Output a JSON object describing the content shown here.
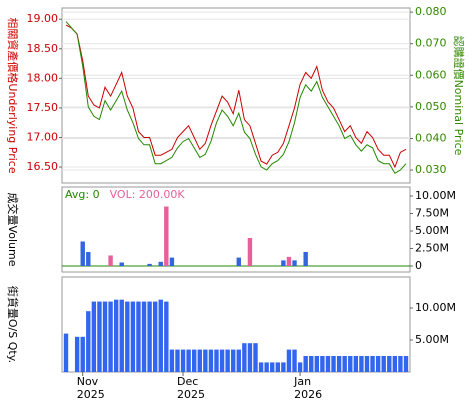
{
  "chart_data": [
    {
      "type": "line",
      "ylabel": "相關資產價格Underlying Price",
      "y2label": "認購證價Nominal Price",
      "ylim": [
        16.23,
        19.19
      ],
      "yticks": [
        {
          "value": 16.5,
          "label": "16.50"
        },
        {
          "value": 17,
          "label": "17.00"
        },
        {
          "value": 17.5,
          "label": "17.50"
        },
        {
          "value": 18,
          "label": "18.00"
        },
        {
          "value": 18.5,
          "label": "18.50"
        },
        {
          "value": 19,
          "label": "19.00"
        }
      ],
      "y2lim": [
        0.0259,
        0.0813
      ],
      "y2ticks": [
        {
          "value": 0.03,
          "label": "0.030"
        },
        {
          "value": 0.04,
          "label": "0.040"
        },
        {
          "value": 0.05,
          "label": "0.050"
        },
        {
          "value": 0.06,
          "label": "0.060"
        },
        {
          "value": 0.07,
          "label": "0.070"
        },
        {
          "value": 0.08,
          "label": "0.080"
        }
      ],
      "ycolor": "#cc0000",
      "y2color": "#338800",
      "grid": true,
      "series": [
        {
          "color": "#cc0000",
          "values": [
            18.9,
            18.85,
            18.75,
            18.3,
            17.7,
            17.55,
            17.5,
            17.85,
            17.7,
            17.9,
            18.1,
            17.7,
            17.5,
            17.1,
            17.0,
            17.0,
            16.7,
            16.7,
            16.75,
            16.8,
            17.0,
            17.1,
            17.2,
            17.0,
            16.8,
            16.9,
            17.2,
            17.45,
            17.7,
            17.6,
            17.4,
            17.8,
            17.3,
            17.2,
            16.9,
            16.6,
            16.55,
            16.7,
            16.75,
            16.9,
            17.2,
            17.5,
            17.9,
            18.1,
            18.0,
            18.2,
            17.8,
            17.6,
            17.5,
            17.3,
            17.1,
            17.2,
            17.0,
            16.9,
            17.1,
            17.0,
            16.8,
            16.7,
            16.7,
            16.5,
            16.75,
            16.8
          ]
        },
        {
          "color": "#228800",
          "axis": "y2",
          "values": [
            0.077,
            0.075,
            0.073,
            0.063,
            0.05,
            0.047,
            0.046,
            0.052,
            0.049,
            0.052,
            0.055,
            0.049,
            0.045,
            0.04,
            0.038,
            0.038,
            0.032,
            0.032,
            0.033,
            0.034,
            0.037,
            0.039,
            0.04,
            0.037,
            0.034,
            0.035,
            0.039,
            0.045,
            0.049,
            0.047,
            0.044,
            0.048,
            0.042,
            0.04,
            0.035,
            0.031,
            0.03,
            0.032,
            0.033,
            0.035,
            0.039,
            0.045,
            0.053,
            0.057,
            0.055,
            0.058,
            0.053,
            0.05,
            0.047,
            0.044,
            0.04,
            0.041,
            0.038,
            0.036,
            0.038,
            0.037,
            0.033,
            0.032,
            0.032,
            0.029,
            0.03,
            0.032
          ]
        }
      ]
    },
    {
      "type": "bar",
      "ylabel": "成交量Volume",
      "legend": [
        {
          "text": "Avg: 0",
          "color": "#228800"
        },
        {
          "text": "VOL: 200.00K",
          "color": "#e8609a"
        }
      ],
      "ylim": [
        -860000,
        11290000
      ],
      "yticks": [
        0,
        {
          "value": 2500000,
          "label": "2.50M"
        },
        {
          "value": 5000000,
          "label": "5.00M"
        },
        {
          "value": 7500000,
          "label": "7.50M"
        },
        {
          "value": 10000000,
          "label": "10.00M"
        }
      ],
      "values": [
        0,
        0,
        0,
        3500000,
        2000000,
        0,
        0,
        0,
        1500000,
        0,
        500000,
        0,
        0,
        0,
        0,
        300000,
        0,
        600000,
        8500000,
        1200000,
        0,
        0,
        0,
        0,
        0,
        0,
        0,
        0,
        0,
        0,
        0,
        1200000,
        0,
        4000000,
        0,
        0,
        0,
        0,
        0,
        800000,
        1300000,
        800000,
        0,
        2000000,
        0,
        0,
        0,
        0,
        0,
        0,
        0,
        0,
        0,
        0,
        0,
        0,
        0,
        0,
        0,
        0,
        0,
        0
      ],
      "colors": [
        "#3366dd",
        "#3366dd",
        "#3366dd",
        "#3366dd",
        "#3366dd",
        "#3366dd",
        "#3366dd",
        "#3366dd",
        "#e8609a",
        "#3366dd",
        "#3366dd",
        "#3366dd",
        "#3366dd",
        "#3366dd",
        "#3366dd",
        "#3366dd",
        "#3366dd",
        "#3366dd",
        "#e8609a",
        "#3366dd",
        "#3366dd",
        "#3366dd",
        "#3366dd",
        "#3366dd",
        "#3366dd",
        "#3366dd",
        "#3366dd",
        "#3366dd",
        "#3366dd",
        "#3366dd",
        "#3366dd",
        "#3366dd",
        "#3366dd",
        "#e8609a",
        "#3366dd",
        "#3366dd",
        "#3366dd",
        "#3366dd",
        "#3366dd",
        "#3366dd",
        "#e8609a",
        "#3366dd",
        "#3366dd",
        "#3366dd",
        "#3366dd",
        "#3366dd",
        "#3366dd",
        "#3366dd",
        "#3366dd",
        "#3366dd",
        "#3366dd",
        "#3366dd",
        "#3366dd",
        "#3366dd",
        "#3366dd",
        "#3366dd",
        "#3366dd",
        "#3366dd",
        "#3366dd",
        "#3366dd",
        "#3366dd",
        "#3366dd"
      ]
    },
    {
      "type": "bar",
      "ylabel": "街貨量O/S Qty.",
      "color": "#3366ee",
      "ylim": [
        0,
        14840000
      ],
      "yticks": [
        {
          "value": 5000000,
          "label": "5.00M"
        },
        {
          "value": 10000000,
          "label": "10.00M"
        }
      ],
      "values": [
        6000000,
        null,
        5500000,
        5500000,
        9500000,
        11000000,
        11000000,
        11000000,
        11000000,
        11300000,
        11300000,
        11000000,
        11000000,
        11000000,
        11000000,
        11000000,
        11000000,
        11300000,
        11000000,
        3500000,
        3500000,
        3500000,
        3500000,
        3500000,
        3500000,
        3500000,
        3500000,
        3500000,
        3500000,
        3500000,
        3500000,
        3500000,
        4500000,
        4500000,
        4500000,
        1500000,
        1500000,
        1500000,
        1500000,
        1500000,
        3500000,
        3500000,
        1500000,
        2500000,
        2500000,
        2500000,
        2500000,
        2500000,
        2500000,
        2500000,
        2500000,
        2500000,
        2500000,
        2500000,
        2500000,
        2500000,
        2500000,
        2500000,
        2500000,
        2500000,
        2500000,
        2500000
      ],
      "categories": [
        null,
        null,
        null,
        "Nov\n2025",
        null,
        null,
        null,
        null,
        null,
        null,
        null,
        null,
        null,
        null,
        null,
        null,
        null,
        null,
        null,
        null,
        null,
        "Dec\n2025",
        null,
        null,
        null,
        null,
        null,
        null,
        null,
        null,
        null,
        null,
        null,
        null,
        null,
        null,
        null,
        null,
        null,
        null,
        null,
        null,
        "Jan\n2026",
        null,
        null,
        null,
        null,
        null,
        null,
        null,
        null,
        null,
        null,
        null,
        null,
        null,
        null,
        null,
        null,
        null,
        null,
        null
      ]
    }
  ]
}
